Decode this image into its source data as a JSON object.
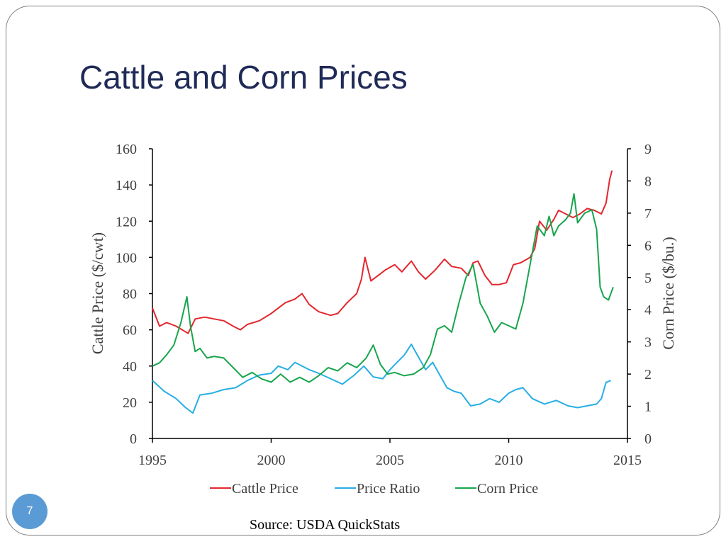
{
  "slide": {
    "title": "Cattle and Corn Prices",
    "source": "Source: USDA QuickStats",
    "page_number": "7"
  },
  "colors": {
    "title": "#1f2a57",
    "cattle": "#e3262d",
    "ratio": "#27aee4",
    "corn": "#17a54d",
    "badge": "#5b9bd5"
  },
  "chart_data": {
    "type": "line",
    "xlabel": "",
    "ylabel": "Cattle Price ($/cwt)",
    "y2label": "Corn Price ($/bu.)",
    "xlim": [
      1995,
      2015
    ],
    "ylim": [
      0,
      160
    ],
    "y2lim": [
      0,
      9
    ],
    "x_ticks": [
      1995,
      2000,
      2005,
      2010,
      2015
    ],
    "y_ticks": [
      0,
      20,
      40,
      60,
      80,
      100,
      120,
      140,
      160
    ],
    "y2_ticks": [
      0,
      1,
      2,
      3,
      4,
      5,
      6,
      7,
      8,
      9
    ],
    "grid": false,
    "legend_position": "bottom",
    "series": [
      {
        "name": "Cattle Price",
        "axis": "left",
        "color": "#e3262d",
        "x": [
          1995,
          1995.3,
          1995.6,
          1996.0,
          1996.5,
          1996.8,
          1997.2,
          1997.6,
          1998.0,
          1998.4,
          1998.7,
          1999.0,
          1999.5,
          2000.0,
          2000.3,
          2000.6,
          2001.0,
          2001.3,
          2001.6,
          2002.0,
          2002.5,
          2002.8,
          2003.2,
          2003.6,
          2003.8,
          2003.95,
          2004.2,
          2004.5,
          2004.8,
          2005.2,
          2005.5,
          2005.9,
          2006.2,
          2006.5,
          2006.9,
          2007.3,
          2007.6,
          2008.0,
          2008.3,
          2008.5,
          2008.7,
          2009.0,
          2009.3,
          2009.6,
          2009.9,
          2010.2,
          2010.5,
          2010.9,
          2011.1,
          2011.3,
          2011.6,
          2011.9,
          2012.1,
          2012.4,
          2012.7,
          2013.0,
          2013.3,
          2013.6,
          2013.9,
          2014.1,
          2014.25,
          2014.35
        ],
        "values": [
          72,
          62,
          64,
          62,
          58,
          66,
          67,
          66,
          65,
          62,
          60,
          63,
          65,
          69,
          72,
          75,
          77,
          80,
          74,
          70,
          68,
          69,
          75,
          80,
          88,
          100,
          87,
          90,
          93,
          96,
          92,
          98,
          92,
          88,
          93,
          99,
          95,
          94,
          90,
          97,
          98,
          90,
          85,
          85,
          86,
          96,
          97,
          100,
          105,
          120,
          115,
          121,
          126,
          124,
          122,
          124,
          127,
          126,
          124,
          130,
          143,
          148
        ]
      },
      {
        "name": "Price Ratio",
        "axis": "left",
        "color": "#27aee4",
        "x": [
          1995,
          1995.5,
          1996.0,
          1996.4,
          1996.7,
          1997.0,
          1997.5,
          1998.0,
          1998.5,
          1999.0,
          1999.5,
          2000.0,
          2000.3,
          2000.7,
          2001.0,
          2001.3,
          2001.6,
          2002.0,
          2002.5,
          2003.0,
          2003.5,
          2003.9,
          2004.3,
          2004.7,
          2005.0,
          2005.3,
          2005.6,
          2005.9,
          2006.2,
          2006.5,
          2006.8,
          2007.1,
          2007.4,
          2007.7,
          2008.0,
          2008.4,
          2008.8,
          2009.2,
          2009.6,
          2010.0,
          2010.3,
          2010.6,
          2011.0,
          2011.5,
          2012.0,
          2012.5,
          2012.9,
          2013.3,
          2013.7,
          2013.9,
          2014.1,
          2014.3
        ],
        "values": [
          32,
          26,
          22,
          17,
          14,
          24,
          25,
          27,
          28,
          32,
          35,
          36,
          40,
          38,
          42,
          40,
          38,
          36,
          33,
          30,
          35,
          40,
          34,
          33,
          38,
          42,
          46,
          52,
          45,
          38,
          42,
          35,
          28,
          26,
          25,
          18,
          19,
          22,
          20,
          25,
          27,
          28,
          22,
          19,
          21,
          18,
          17,
          18,
          19,
          22,
          31,
          32
        ]
      },
      {
        "name": "Corn Price",
        "axis": "right",
        "color": "#17a54d",
        "x": [
          1995,
          1995.3,
          1995.6,
          1995.9,
          1996.2,
          1996.45,
          1996.6,
          1996.8,
          1997.0,
          1997.3,
          1997.6,
          1998.0,
          1998.4,
          1998.8,
          1999.2,
          1999.6,
          2000.0,
          2000.4,
          2000.8,
          2001.2,
          2001.6,
          2002.0,
          2002.4,
          2002.8,
          2003.2,
          2003.6,
          2004.0,
          2004.3,
          2004.6,
          2004.9,
          2005.2,
          2005.6,
          2006.0,
          2006.4,
          2006.7,
          2007.0,
          2007.3,
          2007.6,
          2007.9,
          2008.2,
          2008.5,
          2008.8,
          2009.1,
          2009.4,
          2009.7,
          2010.0,
          2010.3,
          2010.6,
          2010.8,
          2011.0,
          2011.2,
          2011.5,
          2011.7,
          2011.9,
          2012.1,
          2012.4,
          2012.6,
          2012.75,
          2012.9,
          2013.2,
          2013.5,
          2013.7,
          2013.85,
          2014.0,
          2014.2,
          2014.4
        ],
        "values": [
          2.25,
          2.35,
          2.6,
          2.9,
          3.6,
          4.4,
          3.5,
          2.7,
          2.8,
          2.5,
          2.55,
          2.5,
          2.2,
          1.9,
          2.05,
          1.85,
          1.75,
          2.0,
          1.75,
          1.9,
          1.75,
          1.95,
          2.2,
          2.1,
          2.35,
          2.2,
          2.5,
          2.9,
          2.3,
          2.0,
          2.05,
          1.95,
          2.0,
          2.2,
          2.6,
          3.4,
          3.5,
          3.3,
          4.2,
          5.0,
          5.4,
          4.2,
          3.8,
          3.3,
          3.6,
          3.5,
          3.4,
          4.2,
          5.0,
          5.8,
          6.6,
          6.3,
          6.9,
          6.3,
          6.6,
          6.8,
          7.0,
          7.6,
          6.7,
          7.0,
          7.1,
          6.5,
          4.7,
          4.4,
          4.3,
          4.7
        ]
      }
    ]
  }
}
